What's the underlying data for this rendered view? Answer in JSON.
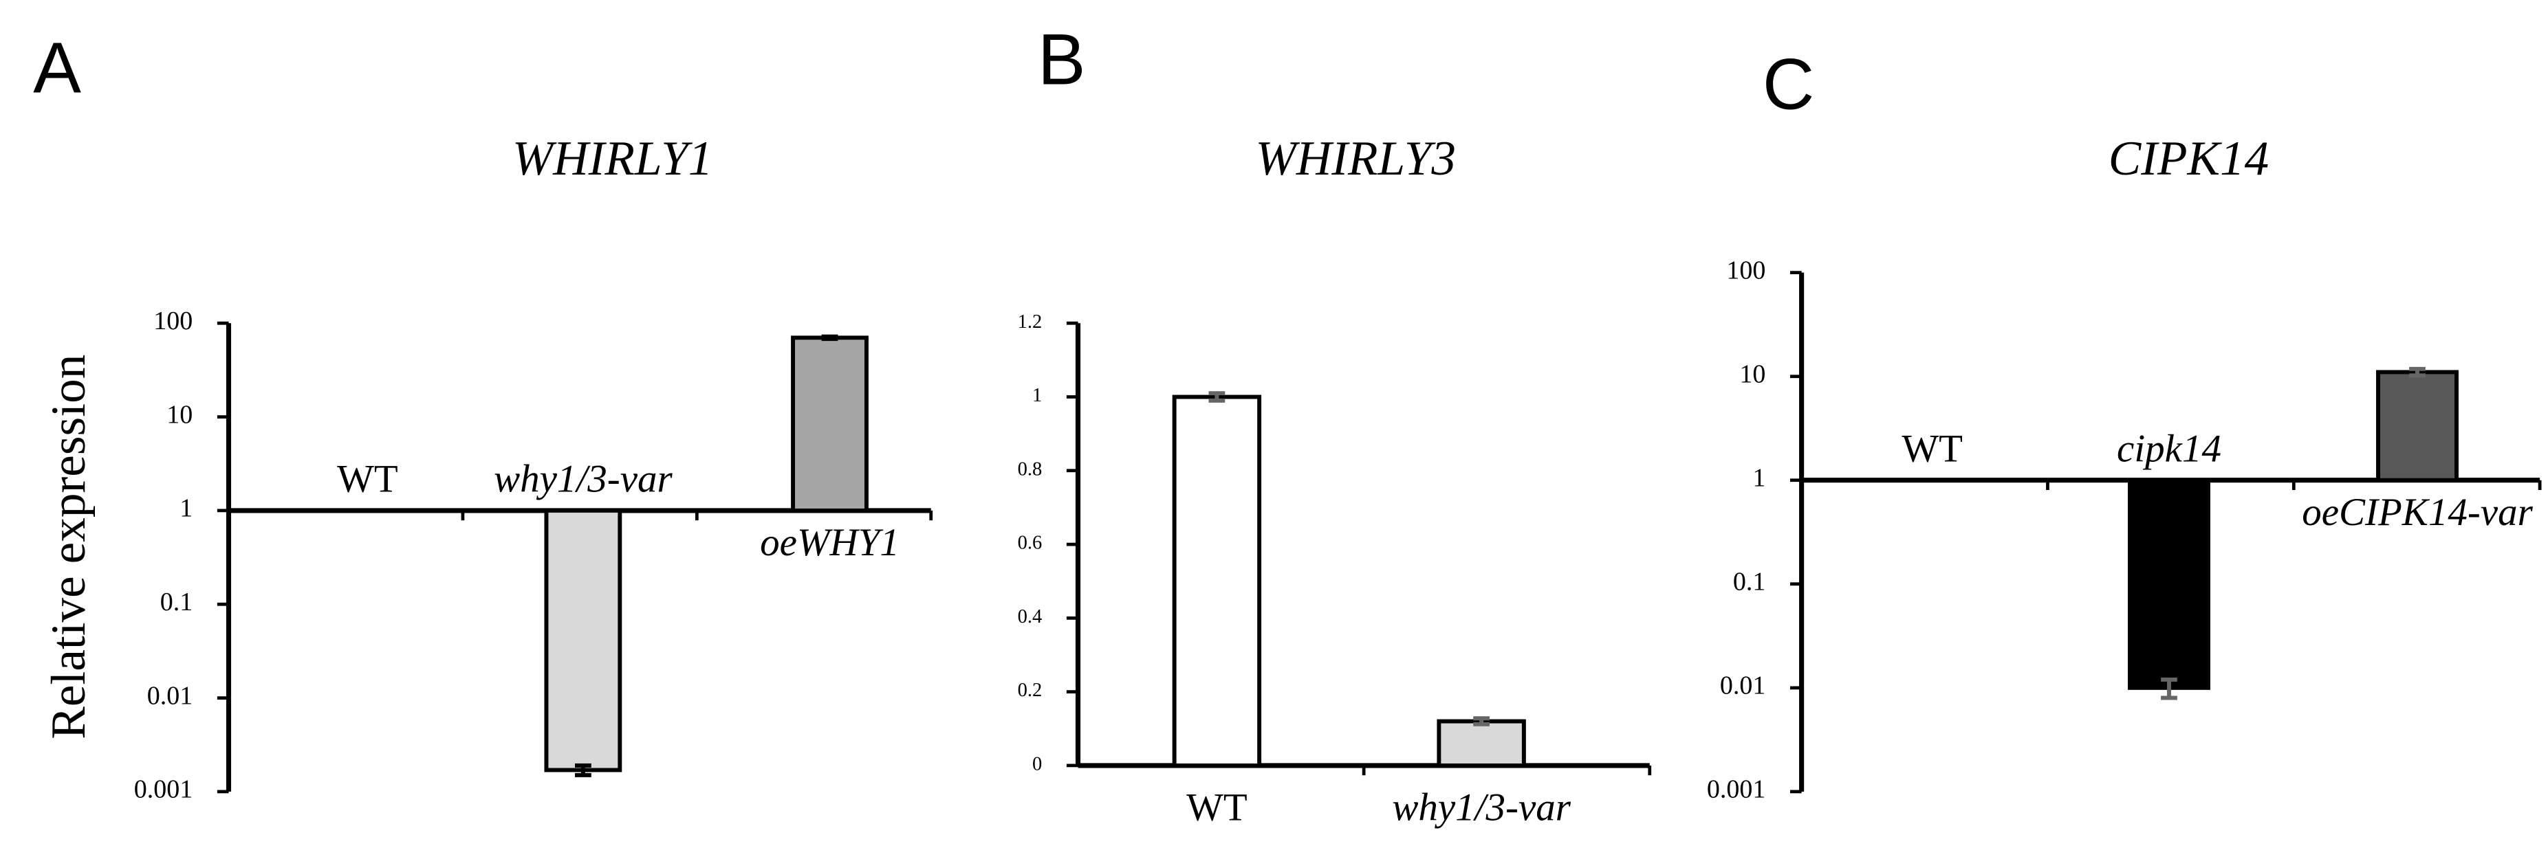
{
  "chart_data": [
    {
      "type": "bar",
      "panel": "A",
      "title": "WHIRLY1",
      "ylabel": "Relative expression",
      "log_scale": true,
      "categories": [
        "WT",
        "why1/3-var",
        "oeWHY1"
      ],
      "values": [
        1,
        0.0017,
        70
      ],
      "errors": [
        null,
        0.0002,
        2
      ],
      "colors": [
        null,
        "#d9d9d9",
        "#a6a6a6"
      ],
      "error_color": "#000000",
      "ylim": [
        0.001,
        100
      ],
      "yticks": [
        0.001,
        0.01,
        0.1,
        1,
        10,
        100
      ]
    },
    {
      "type": "bar",
      "panel": "B",
      "title": "WHIRLY3",
      "log_scale": false,
      "categories": [
        "WT",
        "why1/3-var"
      ],
      "values": [
        1,
        0.12
      ],
      "errors": [
        0.01,
        0.008
      ],
      "colors": [
        "#ffffff",
        "#d9d9d9"
      ],
      "error_color": "#666666",
      "ylim": [
        0,
        1.2
      ],
      "yticks": [
        0,
        0.2,
        0.4,
        0.6,
        0.8,
        1,
        1.2
      ]
    },
    {
      "type": "bar",
      "panel": "C",
      "title": "CIPK14",
      "log_scale": true,
      "categories": [
        "WT",
        "cipk14",
        "oeCIPK14-var"
      ],
      "values": [
        1,
        0.01,
        11
      ],
      "errors": [
        null,
        0.002,
        0.8
      ],
      "colors": [
        null,
        "#000000",
        "#595959"
      ],
      "error_color": "#666666",
      "ylim": [
        0.001,
        100
      ],
      "yticks": [
        0.001,
        0.01,
        0.1,
        1,
        10,
        100
      ]
    }
  ]
}
